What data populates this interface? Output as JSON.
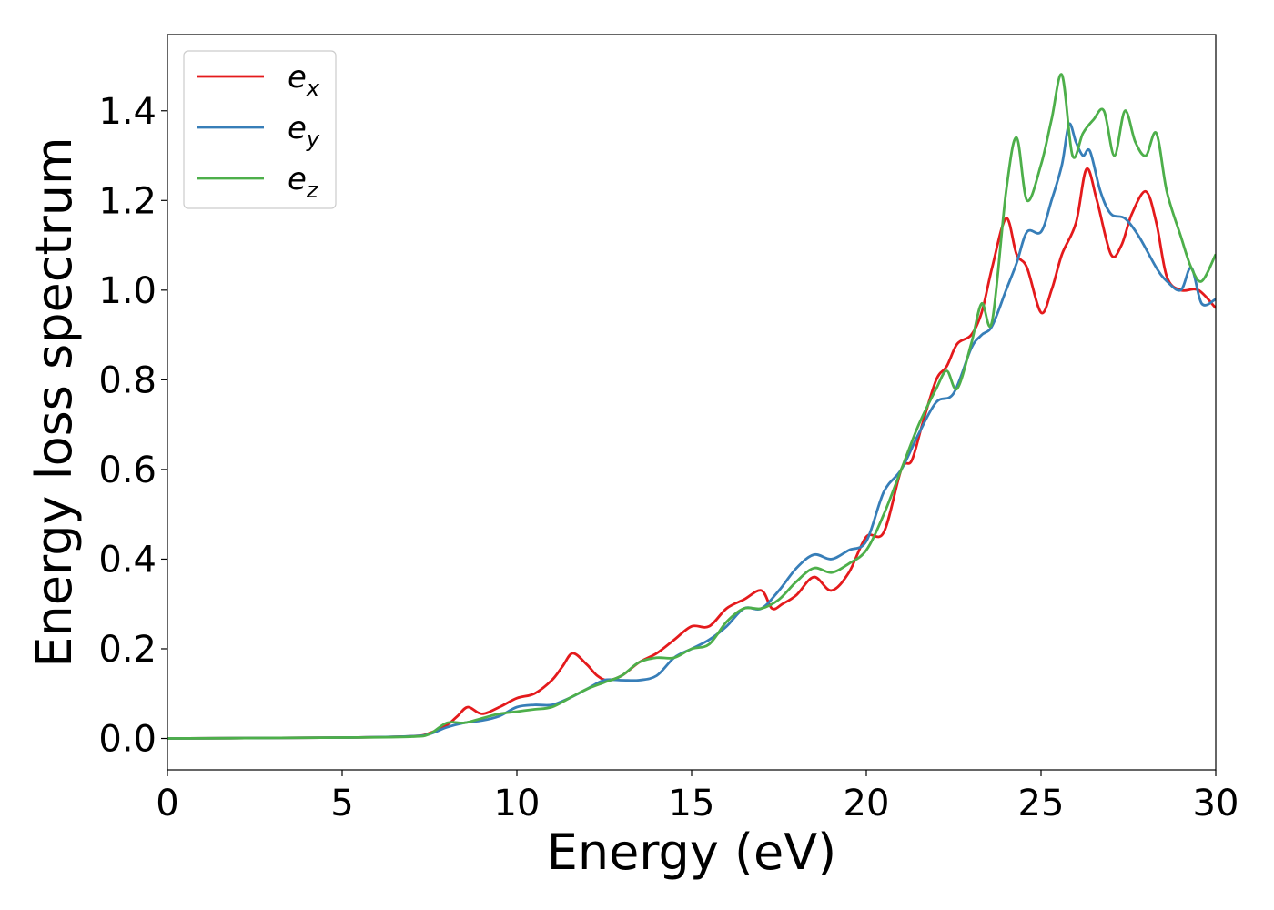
{
  "chart_data": {
    "type": "line",
    "title": "",
    "xlabel": "Energy (eV)",
    "ylabel": "Energy loss spectrum",
    "xlim": [
      0,
      30
    ],
    "ylim": [
      -0.07,
      1.57
    ],
    "xticks": [
      0,
      5,
      10,
      15,
      20,
      25,
      30
    ],
    "xtick_labels": [
      "0",
      "5",
      "10",
      "15",
      "20",
      "25",
      "30"
    ],
    "yticks": [
      0.0,
      0.2,
      0.4,
      0.6,
      0.8,
      1.0,
      1.2,
      1.4
    ],
    "ytick_labels": [
      "0.0",
      "0.2",
      "0.4",
      "0.6",
      "0.8",
      "1.0",
      "1.2",
      "1.4"
    ],
    "grid": false,
    "legend_position": "top-left",
    "series": [
      {
        "name": "e_x",
        "legend_base": "e",
        "legend_sub": "x",
        "color": "#e41a1c",
        "x": [
          0,
          5,
          7,
          7.5,
          8,
          8.3,
          8.6,
          9,
          9.5,
          10,
          10.5,
          11,
          11.3,
          11.6,
          12,
          12.3,
          12.6,
          13,
          13.5,
          14,
          14.5,
          15,
          15.5,
          16,
          16.5,
          17,
          17.3,
          17.6,
          18,
          18.5,
          19,
          19.5,
          20,
          20.5,
          21,
          21.3,
          21.6,
          22,
          22.3,
          22.6,
          23,
          23.3,
          23.6,
          24,
          24.3,
          24.6,
          25,
          25.3,
          25.6,
          26,
          26.3,
          26.6,
          27,
          27.3,
          27.6,
          28,
          28.3,
          28.6,
          29,
          29.5,
          30
        ],
        "y": [
          0,
          0.002,
          0.005,
          0.012,
          0.03,
          0.05,
          0.07,
          0.055,
          0.07,
          0.09,
          0.1,
          0.13,
          0.16,
          0.19,
          0.165,
          0.14,
          0.13,
          0.14,
          0.17,
          0.19,
          0.22,
          0.25,
          0.25,
          0.29,
          0.31,
          0.33,
          0.29,
          0.3,
          0.32,
          0.36,
          0.33,
          0.37,
          0.45,
          0.46,
          0.6,
          0.62,
          0.7,
          0.8,
          0.83,
          0.88,
          0.9,
          0.95,
          1.05,
          1.16,
          1.08,
          1.05,
          0.95,
          1.0,
          1.08,
          1.15,
          1.27,
          1.2,
          1.08,
          1.1,
          1.17,
          1.22,
          1.15,
          1.03,
          1.0,
          1.0,
          0.96
        ]
      },
      {
        "name": "e_y",
        "legend_base": "e",
        "legend_sub": "y",
        "color": "#377eb8",
        "x": [
          0,
          5,
          7,
          7.5,
          8,
          8.5,
          9,
          9.5,
          10,
          10.5,
          11,
          11.5,
          12,
          12.5,
          13,
          13.5,
          14,
          14.5,
          15,
          15.5,
          16,
          16.5,
          17,
          17.5,
          18,
          18.5,
          19,
          19.5,
          20,
          20.5,
          21,
          21.5,
          22,
          22.5,
          23,
          23.3,
          23.6,
          24,
          24.3,
          24.6,
          25,
          25.3,
          25.6,
          25.8,
          26,
          26.2,
          26.4,
          26.7,
          27,
          27.4,
          27.8,
          28.3,
          28.6,
          29,
          29.3,
          29.6,
          30
        ],
        "y": [
          0,
          0.002,
          0.005,
          0.01,
          0.025,
          0.035,
          0.04,
          0.05,
          0.07,
          0.075,
          0.075,
          0.09,
          0.11,
          0.13,
          0.13,
          0.13,
          0.14,
          0.18,
          0.2,
          0.22,
          0.25,
          0.29,
          0.29,
          0.33,
          0.38,
          0.41,
          0.4,
          0.42,
          0.44,
          0.55,
          0.6,
          0.68,
          0.75,
          0.77,
          0.87,
          0.9,
          0.92,
          1.0,
          1.06,
          1.13,
          1.13,
          1.2,
          1.28,
          1.37,
          1.33,
          1.3,
          1.31,
          1.22,
          1.17,
          1.16,
          1.12,
          1.05,
          1.02,
          1.0,
          1.05,
          0.97,
          0.98
        ]
      },
      {
        "name": "e_z",
        "legend_base": "e",
        "legend_sub": "z",
        "color": "#4daf4a",
        "x": [
          0,
          5,
          7,
          7.5,
          8,
          8.5,
          9,
          9.5,
          10,
          10.5,
          11,
          11.5,
          12,
          12.5,
          13,
          13.5,
          14,
          14.5,
          15,
          15.5,
          16,
          16.5,
          17,
          17.5,
          18,
          18.5,
          19,
          19.5,
          20,
          20.5,
          21,
          21.5,
          22,
          22.3,
          22.6,
          23,
          23.3,
          23.6,
          24,
          24.3,
          24.6,
          25,
          25.3,
          25.6,
          25.9,
          26.2,
          26.5,
          26.8,
          27.1,
          27.4,
          27.7,
          28,
          28.3,
          28.6,
          29,
          29.3,
          29.6,
          30
        ],
        "y": [
          0,
          0.002,
          0.004,
          0.01,
          0.035,
          0.035,
          0.045,
          0.055,
          0.06,
          0.065,
          0.07,
          0.09,
          0.11,
          0.125,
          0.14,
          0.17,
          0.18,
          0.18,
          0.2,
          0.21,
          0.26,
          0.29,
          0.29,
          0.31,
          0.35,
          0.38,
          0.37,
          0.39,
          0.42,
          0.5,
          0.6,
          0.7,
          0.78,
          0.82,
          0.78,
          0.88,
          0.97,
          0.93,
          1.22,
          1.34,
          1.2,
          1.28,
          1.38,
          1.48,
          1.3,
          1.35,
          1.38,
          1.4,
          1.3,
          1.4,
          1.33,
          1.3,
          1.35,
          1.22,
          1.12,
          1.05,
          1.02,
          1.08
        ]
      }
    ]
  }
}
